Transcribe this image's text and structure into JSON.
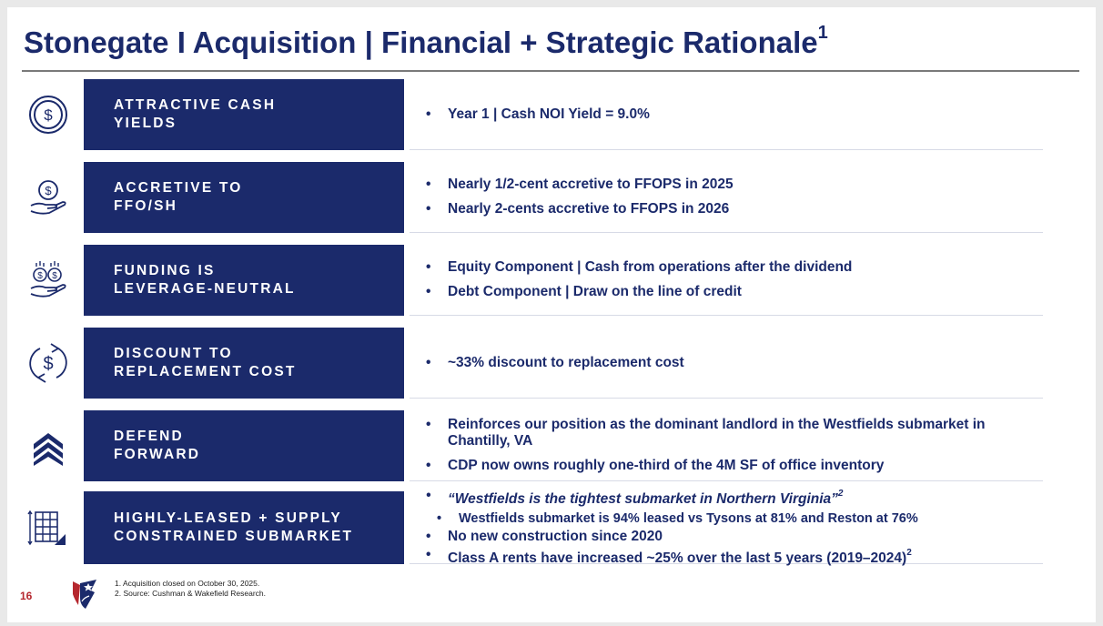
{
  "title": {
    "text": "Stonegate I Acquisition | Financial + Strategic Rationale",
    "superscript": "1"
  },
  "rows": [
    {
      "icon": "dollar-coin-icon",
      "label": "ATTRACTIVE CASH\nYIELDS",
      "bullets": [
        "Year 1 | Cash NOI Yield = 9.0%"
      ]
    },
    {
      "icon": "hand-dollar-icon",
      "label": "ACCRETIVE TO\nFFO/SH",
      "bullets": [
        "Nearly 1/2-cent accretive to FFOPS in 2025",
        "Nearly 2-cents accretive to FFOPS in 2026"
      ]
    },
    {
      "icon": "hand-coins-icon",
      "label": "FUNDING IS\nLEVERAGE-NEUTRAL",
      "bullets": [
        "Equity Component | Cash from operations after the dividend",
        "Debt Component | Draw on the line of credit"
      ]
    },
    {
      "icon": "dollar-cycle-icon",
      "label": "DISCOUNT TO\nREPLACEMENT COST",
      "bullets": [
        "~33% discount to replacement cost"
      ]
    },
    {
      "icon": "chevrons-up-icon",
      "label": "DEFEND\nFORWARD",
      "bullets": [
        "Reinforces our position as the dominant landlord in the Westfields submarket in Chantilly, VA",
        "CDP now owns roughly one-third of the 4M SF of office inventory"
      ]
    },
    {
      "icon": "building-grid-icon",
      "label": "HIGHLY-LEASED + SUPPLY\nCONSTRAINED SUBMARKET",
      "bullets": [
        {
          "text": "“Westfields is the tightest submarket in Northern Virginia”",
          "sup": "2"
        },
        {
          "text": "Westfields submarket is 94% leased vs Tysons at 81% and Reston at 76%"
        },
        {
          "text": "No new construction since 2020"
        },
        {
          "text": "Class A rents have increased ~25% over the last 5 years (2019–2024)",
          "sup": "2"
        }
      ]
    }
  ],
  "footer": {
    "page_number": "16",
    "footnotes": [
      "1. Acquisition closed on October 30, 2025.",
      "2. Source: Cushman & Wakefield Research."
    ]
  },
  "colors": {
    "navy": "#1b2a6b",
    "accent_red": "#b5272e",
    "rule": "#7a7a7a"
  }
}
